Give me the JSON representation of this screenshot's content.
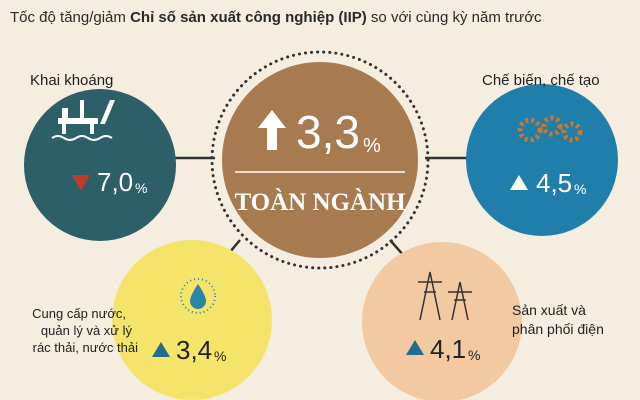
{
  "header": {
    "title_start": "Tốc độ tăng/giảm ",
    "title_bold": "Chỉ số sản xuất công nghiệp (IIP)",
    "title_end": " so với cùng kỳ năm trước"
  },
  "center": {
    "value": "3,3",
    "unit": "%",
    "label": "TOÀN NGÀNH"
  },
  "nodes": [
    {
      "label": [
        "Khai khoáng"
      ],
      "value": "7,0",
      "unit": "%"
    },
    {
      "label": [
        "Chế biến, chế tạo"
      ],
      "value": "4,5",
      "unit": "%"
    },
    {
      "label": [
        "Cung cấp nước,",
        "quản lý và xử lý",
        "rác thải, nước thải"
      ],
      "value": "3,4",
      "unit": "%"
    },
    {
      "label": [
        "Sản xuất và",
        "phân phối điện"
      ],
      "value": "4,1",
      "unit": "%"
    }
  ]
}
